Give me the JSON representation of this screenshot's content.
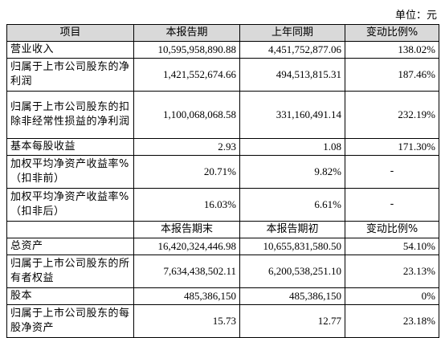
{
  "unit_label": "单位：元",
  "header": [
    "项目",
    "本报告期",
    "上年同期",
    "变动比例%"
  ],
  "section1": [
    {
      "label": "营业收入",
      "current": "10,595,958,890.88",
      "prior": "4,451,752,877.06",
      "change": "138.02%"
    },
    {
      "label": "归属于上市公司股东的净利润",
      "current": "1,421,552,674.66",
      "prior": "494,513,815.31",
      "change": "187.46%"
    },
    {
      "label": "归属于上市公司股东的扣除非经常性损益的净利润",
      "current": "1,100,068,068.58",
      "prior": "331,160,491.14",
      "change": "232.19%"
    },
    {
      "label": "基本每股收益",
      "current": "2.93",
      "prior": "1.08",
      "change": "171.30%"
    },
    {
      "label": "加权平均净资产收益率%（扣非前）",
      "current": "20.71%",
      "prior": "9.82%",
      "change": "-"
    },
    {
      "label": "加权平均净资产收益率%（扣非后）",
      "current": "16.03%",
      "prior": "6.61%",
      "change": "-"
    }
  ],
  "header2": [
    "",
    "本报告期末",
    "本报告期初",
    "变动比例%"
  ],
  "section2": [
    {
      "label": "总资产",
      "current": "16,420,324,446.98",
      "prior": "10,655,831,580.50",
      "change": "54.10%"
    },
    {
      "label": "归属于上市公司股东的所有者权益",
      "current": "7,634,438,502.11",
      "prior": "6,200,538,251.10",
      "change": "23.13%"
    },
    {
      "label": "股本",
      "current": "485,386,150",
      "prior": "485,386,150",
      "change": "0%"
    },
    {
      "label": "归属于上市公司股东的每股净资产",
      "current": "15.73",
      "prior": "12.77",
      "change": "23.18%"
    }
  ]
}
